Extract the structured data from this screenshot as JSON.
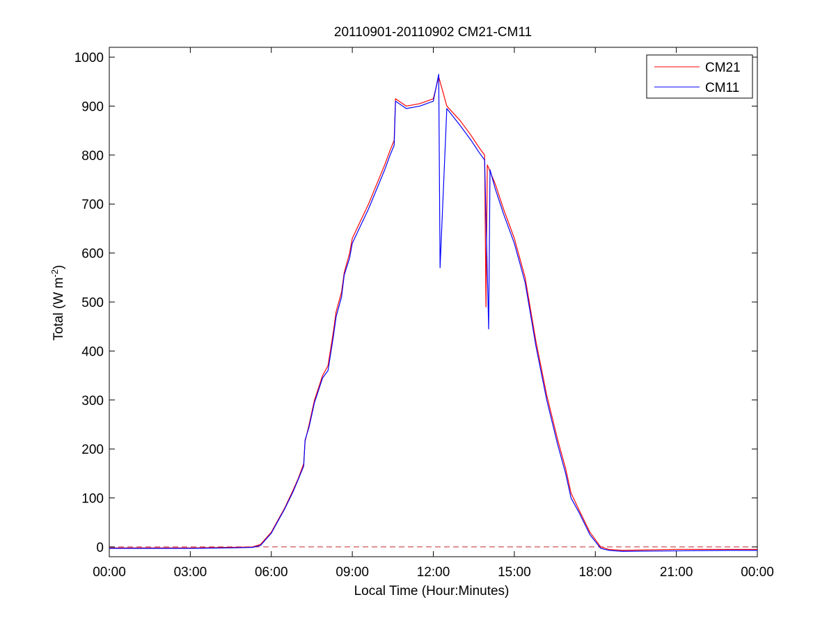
{
  "chart_data": {
    "type": "line",
    "title": "20110901-20110902 CM21-CM11",
    "xlabel": "Local Time (Hour:Minutes)",
    "ylabel_main": "Total (W m",
    "ylabel_sup": "-2",
    "ylabel_close": ")",
    "xlim": [
      0,
      24
    ],
    "ylim": [
      -20,
      1020
    ],
    "x_ticks": [
      0,
      3,
      6,
      9,
      12,
      15,
      18,
      21,
      24
    ],
    "x_tick_labels": [
      "00:00",
      "03:00",
      "06:00",
      "09:00",
      "12:00",
      "15:00",
      "18:00",
      "21:00",
      "00:00"
    ],
    "y_ticks": [
      0,
      100,
      200,
      300,
      400,
      500,
      600,
      700,
      800,
      900,
      1000
    ],
    "y_tick_labels": [
      "0",
      "100",
      "200",
      "300",
      "400",
      "500",
      "600",
      "700",
      "800",
      "900",
      "1000"
    ],
    "grid": false,
    "legend_position": "top-right",
    "reference_line": {
      "y": 0,
      "style": "dashed",
      "color": "#c0282d"
    },
    "series": [
      {
        "name": "CM21",
        "color": "#ff0000",
        "x": [
          0,
          3,
          4.5,
          5.3,
          5.6,
          6.0,
          6.3,
          6.5,
          6.8,
          7.0,
          7.2,
          7.25,
          7.4,
          7.6,
          7.9,
          8.1,
          8.3,
          8.4,
          8.6,
          8.7,
          8.9,
          9.0,
          9.3,
          9.6,
          9.9,
          10.2,
          10.4,
          10.55,
          10.6,
          11.0,
          11.5,
          12.0,
          12.2,
          12.5,
          13.0,
          13.4,
          13.7,
          13.9,
          13.95,
          14.0,
          14.3,
          14.6,
          15.0,
          15.4,
          15.8,
          16.2,
          16.6,
          16.9,
          17.1,
          17.4,
          17.8,
          18.2,
          18.5,
          19.0,
          21.0,
          23.0,
          24.0
        ],
        "y": [
          -2,
          -2,
          -1,
          0,
          5,
          30,
          60,
          80,
          115,
          140,
          170,
          215,
          250,
          300,
          350,
          370,
          440,
          480,
          520,
          560,
          600,
          630,
          665,
          700,
          740,
          780,
          810,
          830,
          915,
          900,
          905,
          915,
          960,
          900,
          870,
          840,
          815,
          800,
          490,
          780,
          740,
          690,
          630,
          550,
          420,
          310,
          220,
          160,
          110,
          75,
          30,
          0,
          -5,
          -7,
          -5,
          -5,
          -5
        ]
      },
      {
        "name": "CM11",
        "color": "#0000ff",
        "x": [
          0,
          3,
          4.5,
          5.3,
          5.6,
          6.0,
          6.3,
          6.5,
          6.8,
          7.0,
          7.2,
          7.25,
          7.4,
          7.6,
          7.9,
          8.1,
          8.3,
          8.4,
          8.6,
          8.7,
          8.9,
          9.0,
          9.3,
          9.6,
          9.9,
          10.2,
          10.4,
          10.55,
          10.6,
          11.0,
          11.5,
          12.0,
          12.2,
          12.25,
          12.5,
          13.0,
          13.4,
          13.7,
          13.9,
          14.05,
          14.1,
          14.3,
          14.6,
          15.0,
          15.4,
          15.8,
          16.2,
          16.6,
          16.9,
          17.1,
          17.4,
          17.8,
          18.2,
          18.5,
          19.0,
          21.0,
          23.0,
          24.0
        ],
        "y": [
          -3,
          -3,
          -2,
          -1,
          3,
          28,
          58,
          78,
          112,
          138,
          165,
          218,
          245,
          295,
          345,
          360,
          430,
          470,
          510,
          555,
          590,
          620,
          655,
          690,
          730,
          770,
          800,
          820,
          910,
          895,
          900,
          910,
          965,
          570,
          895,
          860,
          830,
          805,
          790,
          445,
          770,
          730,
          680,
          620,
          540,
          410,
          300,
          210,
          150,
          100,
          70,
          25,
          -3,
          -7,
          -9,
          -8,
          -7,
          -7
        ]
      }
    ]
  }
}
